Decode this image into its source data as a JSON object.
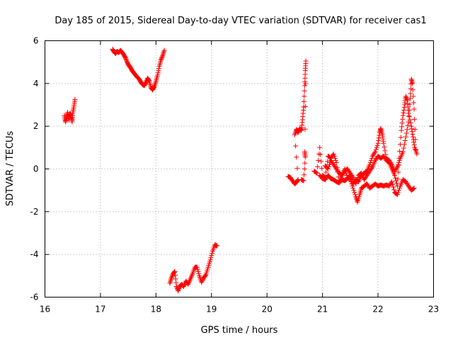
{
  "chart_data": {
    "type": "scatter",
    "title": "Day 185 of 2015, Sidereal Day-to-day VTEC variation (SDTVAR) for receiver cas1",
    "xlabel": "GPS time / hours",
    "ylabel": "SDTVAR / TECUs",
    "xlim": [
      16,
      23
    ],
    "ylim": [
      -6,
      6
    ],
    "xticks": [
      16,
      17,
      18,
      19,
      20,
      21,
      22,
      23
    ],
    "yticks": [
      -6,
      -4,
      -2,
      0,
      2,
      4,
      6
    ],
    "grid": true,
    "marker": "plus",
    "marker_color": "#ff0000",
    "series": [
      {
        "name": "cas1",
        "segments": [
          [
            [
              16.35,
              2.5
            ],
            [
              16.37,
              2.2
            ],
            [
              16.39,
              2.4
            ],
            [
              16.41,
              2.65
            ],
            [
              16.43,
              2.3
            ],
            [
              16.45,
              2.6
            ],
            [
              16.47,
              2.5
            ],
            [
              16.49,
              2.2
            ],
            [
              16.5,
              2.6
            ],
            [
              16.52,
              2.9
            ],
            [
              16.54,
              3.25
            ]
          ],
          [
            [
              17.22,
              5.6
            ],
            [
              17.24,
              5.5
            ],
            [
              17.27,
              5.4
            ],
            [
              17.3,
              5.5
            ],
            [
              17.33,
              5.45
            ],
            [
              17.36,
              5.55
            ],
            [
              17.39,
              5.45
            ],
            [
              17.42,
              5.35
            ],
            [
              17.45,
              5.2
            ],
            [
              17.48,
              5.0
            ],
            [
              17.51,
              4.85
            ],
            [
              17.54,
              4.75
            ],
            [
              17.57,
              4.6
            ],
            [
              17.6,
              4.5
            ],
            [
              17.63,
              4.4
            ],
            [
              17.66,
              4.3
            ],
            [
              17.7,
              4.2
            ],
            [
              17.73,
              4.05
            ],
            [
              17.76,
              3.95
            ],
            [
              17.79,
              3.9
            ],
            [
              17.82,
              4.05
            ],
            [
              17.85,
              4.25
            ],
            [
              17.88,
              4.1
            ],
            [
              17.91,
              3.8
            ],
            [
              17.94,
              3.7
            ],
            [
              17.97,
              3.85
            ],
            [
              18.0,
              4.1
            ],
            [
              18.03,
              4.4
            ],
            [
              18.06,
              4.8
            ],
            [
              18.09,
              5.1
            ],
            [
              18.12,
              5.3
            ],
            [
              18.15,
              5.55
            ]
          ],
          [
            [
              18.25,
              -5.35
            ],
            [
              18.28,
              -5.1
            ],
            [
              18.31,
              -4.9
            ],
            [
              18.34,
              -4.8
            ],
            [
              18.37,
              -5.5
            ],
            [
              18.4,
              -5.7
            ],
            [
              18.43,
              -5.5
            ],
            [
              18.46,
              -5.4
            ],
            [
              18.5,
              -5.5
            ],
            [
              18.54,
              -5.25
            ],
            [
              18.58,
              -5.4
            ],
            [
              18.62,
              -5.15
            ],
            [
              18.66,
              -4.9
            ],
            [
              18.7,
              -4.6
            ],
            [
              18.74,
              -4.6
            ],
            [
              18.78,
              -5.0
            ],
            [
              18.82,
              -5.3
            ],
            [
              18.86,
              -5.1
            ],
            [
              18.9,
              -4.95
            ],
            [
              18.94,
              -4.6
            ],
            [
              18.98,
              -4.25
            ],
            [
              19.02,
              -3.85
            ],
            [
              19.06,
              -3.55
            ],
            [
              19.1,
              -3.6
            ]
          ],
          [
            [
              20.38,
              -0.35
            ],
            [
              20.42,
              -0.4
            ],
            [
              20.46,
              -0.55
            ],
            [
              20.5,
              -0.7
            ],
            [
              20.54,
              -0.6
            ],
            [
              20.56,
              -0.5
            ],
            [
              20.5,
              1.6
            ],
            [
              20.53,
              1.85
            ],
            [
              20.56,
              1.7
            ],
            [
              20.59,
              1.9
            ],
            [
              20.62,
              1.8
            ],
            [
              20.64,
              2.3
            ],
            [
              20.66,
              2.9
            ],
            [
              20.68,
              3.9
            ],
            [
              20.69,
              4.6
            ],
            [
              20.7,
              5.05
            ],
            [
              20.68,
              0.8
            ],
            [
              20.69,
              0.55
            ],
            [
              20.66,
              -0.55
            ],
            [
              20.62,
              -0.5
            ]
          ],
          [
            [
              20.85,
              -0.1
            ],
            [
              20.9,
              -0.2
            ],
            [
              20.95,
              1.0
            ],
            [
              21.0,
              -0.3
            ],
            [
              21.05,
              -0.4
            ],
            [
              21.1,
              0.6
            ],
            [
              21.15,
              0.5
            ],
            [
              21.2,
              0.7
            ],
            [
              21.25,
              0.3
            ],
            [
              21.3,
              -0.6
            ],
            [
              21.35,
              -0.3
            ],
            [
              21.4,
              0.0
            ],
            [
              21.45,
              -0.4
            ],
            [
              21.5,
              -0.5
            ],
            [
              21.55,
              -0.9
            ],
            [
              21.6,
              -1.3
            ],
            [
              21.63,
              -1.55
            ],
            [
              21.67,
              -1.2
            ],
            [
              21.7,
              -0.9
            ],
            [
              21.75,
              -0.8
            ],
            [
              21.8,
              -0.7
            ],
            [
              21.85,
              -0.9
            ],
            [
              21.9,
              -0.8
            ],
            [
              21.95,
              -0.7
            ],
            [
              22.0,
              -0.8
            ],
            [
              22.05,
              -0.75
            ],
            [
              22.1,
              -0.8
            ],
            [
              22.15,
              -0.75
            ],
            [
              22.2,
              -0.8
            ],
            [
              22.25,
              -0.6
            ],
            [
              22.3,
              -1.1
            ],
            [
              22.35,
              -1.2
            ],
            [
              22.4,
              -0.8
            ],
            [
              22.45,
              -0.5
            ],
            [
              22.5,
              -0.6
            ],
            [
              22.55,
              -0.8
            ],
            [
              22.6,
              -1.0
            ],
            [
              22.65,
              -0.9
            ]
          ],
          [
            [
              20.95,
              -0.3
            ],
            [
              21.0,
              -0.45
            ],
            [
              21.05,
              -0.5
            ],
            [
              21.1,
              -0.3
            ],
            [
              21.15,
              -0.45
            ],
            [
              21.2,
              -0.5
            ],
            [
              21.25,
              -0.6
            ],
            [
              21.3,
              -0.65
            ],
            [
              21.35,
              -0.5
            ],
            [
              21.4,
              -0.55
            ],
            [
              21.45,
              -0.45
            ],
            [
              21.5,
              -0.3
            ],
            [
              21.55,
              -0.7
            ],
            [
              21.6,
              -0.5
            ],
            [
              21.65,
              -0.6
            ],
            [
              21.7,
              -0.3
            ],
            [
              21.75,
              -0.2
            ],
            [
              21.8,
              -0.1
            ],
            [
              21.85,
              0.2
            ],
            [
              21.9,
              0.6
            ],
            [
              21.95,
              0.8
            ],
            [
              22.0,
              1.2
            ],
            [
              22.03,
              1.7
            ],
            [
              22.05,
              1.9
            ],
            [
              22.08,
              1.6
            ],
            [
              22.1,
              1.2
            ],
            [
              22.15,
              0.5
            ],
            [
              22.2,
              0.4
            ],
            [
              22.25,
              0.2
            ],
            [
              22.3,
              -0.1
            ],
            [
              22.35,
              0.1
            ],
            [
              22.4,
              0.5
            ],
            [
              22.45,
              0.8
            ],
            [
              22.5,
              1.5
            ],
            [
              22.55,
              2.2
            ],
            [
              22.58,
              3.3
            ],
            [
              22.6,
              4.2
            ],
            [
              22.62,
              4.0
            ],
            [
              22.65,
              2.8
            ],
            [
              22.68,
              0.9
            ]
          ],
          [
            [
              21.05,
              0.15
            ],
            [
              21.1,
              0.0
            ],
            [
              21.15,
              0.4
            ],
            [
              21.2,
              0.2
            ],
            [
              21.25,
              0.0
            ],
            [
              21.3,
              -0.2
            ],
            [
              21.35,
              -0.3
            ],
            [
              21.4,
              -0.1
            ],
            [
              21.45,
              0.0
            ],
            [
              21.5,
              -0.2
            ],
            [
              21.55,
              -0.4
            ],
            [
              21.6,
              -0.7
            ],
            [
              21.65,
              -0.3
            ],
            [
              21.7,
              -0.2
            ],
            [
              21.75,
              -0.5
            ],
            [
              21.8,
              -0.3
            ],
            [
              21.85,
              -0.1
            ],
            [
              21.9,
              0.1
            ],
            [
              21.95,
              0.4
            ],
            [
              22.0,
              0.6
            ],
            [
              22.05,
              0.5
            ],
            [
              22.1,
              0.6
            ],
            [
              22.15,
              0.4
            ],
            [
              22.2,
              0.3
            ],
            [
              22.25,
              0.0
            ],
            [
              22.3,
              -0.3
            ],
            [
              22.35,
              -0.8
            ],
            [
              22.38,
              0.5
            ],
            [
              22.42,
              1.8
            ],
            [
              22.45,
              2.5
            ],
            [
              22.48,
              3.0
            ],
            [
              22.5,
              3.4
            ],
            [
              22.53,
              3.2
            ],
            [
              22.55,
              2.6
            ],
            [
              22.6,
              2.0
            ],
            [
              22.63,
              1.5
            ],
            [
              22.66,
              1.0
            ],
            [
              22.7,
              0.7
            ]
          ]
        ]
      }
    ]
  }
}
